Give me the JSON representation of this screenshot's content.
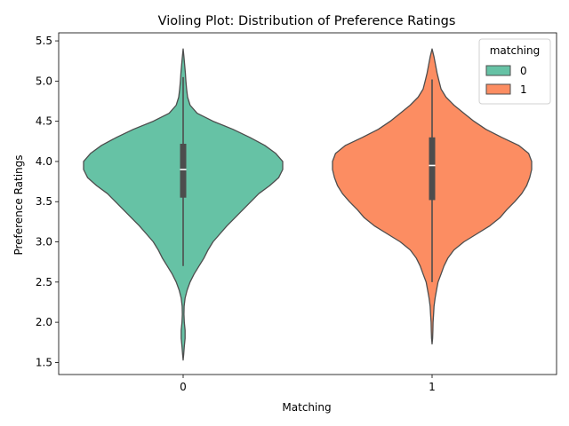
{
  "chart_data": {
    "type": "violin",
    "title": "Violing Plot: Distribution of Preference Ratings",
    "xlabel": "Matching",
    "ylabel": "Preference Ratings",
    "categories": [
      "0",
      "1"
    ],
    "ylim": [
      1.35,
      5.6
    ],
    "yticks": [
      "1.5",
      "2.0",
      "2.5",
      "3.0",
      "3.5",
      "4.0",
      "4.5",
      "5.0",
      "5.5"
    ],
    "grid": false,
    "legend": {
      "title": "matching",
      "position": "top-right",
      "entries": [
        {
          "label": "0",
          "color": "#66c2a5"
        },
        {
          "label": "1",
          "color": "#fc8d62"
        }
      ]
    },
    "series": [
      {
        "category": "0",
        "color": "#66c2a5",
        "density_y": [
          1.53,
          1.6,
          1.7,
          1.8,
          1.9,
          2.0,
          2.1,
          2.2,
          2.3,
          2.4,
          2.5,
          2.6,
          2.7,
          2.8,
          2.9,
          3.0,
          3.1,
          3.2,
          3.3,
          3.4,
          3.5,
          3.6,
          3.7,
          3.8,
          3.9,
          4.0,
          4.1,
          4.2,
          4.3,
          4.4,
          4.5,
          4.6,
          4.7,
          4.8,
          4.9,
          5.0,
          5.1,
          5.2,
          5.3,
          5.4
        ],
        "density_w": [
          0.0,
          0.005,
          0.012,
          0.02,
          0.02,
          0.012,
          0.008,
          0.01,
          0.02,
          0.04,
          0.07,
          0.11,
          0.16,
          0.21,
          0.25,
          0.3,
          0.37,
          0.44,
          0.52,
          0.6,
          0.68,
          0.76,
          0.87,
          0.96,
          1.0,
          1.0,
          0.93,
          0.82,
          0.67,
          0.5,
          0.3,
          0.14,
          0.07,
          0.045,
          0.035,
          0.028,
          0.022,
          0.015,
          0.008,
          0.0
        ],
        "whisker": [
          2.7,
          5.05
        ],
        "q1": 3.55,
        "median": 3.9,
        "q3": 4.22
      },
      {
        "category": "1",
        "color": "#fc8d62",
        "density_y": [
          1.73,
          1.8,
          1.9,
          2.0,
          2.1,
          2.2,
          2.3,
          2.4,
          2.5,
          2.6,
          2.7,
          2.8,
          2.9,
          3.0,
          3.1,
          3.2,
          3.3,
          3.4,
          3.5,
          3.6,
          3.7,
          3.8,
          3.9,
          4.0,
          4.1,
          4.2,
          4.3,
          4.4,
          4.5,
          4.6,
          4.7,
          4.8,
          4.9,
          5.0,
          5.1,
          5.2,
          5.3,
          5.4
        ],
        "density_w": [
          0.0,
          0.005,
          0.008,
          0.01,
          0.015,
          0.02,
          0.03,
          0.045,
          0.06,
          0.09,
          0.12,
          0.16,
          0.22,
          0.32,
          0.45,
          0.58,
          0.68,
          0.75,
          0.83,
          0.9,
          0.95,
          0.98,
          1.0,
          1.0,
          0.97,
          0.87,
          0.7,
          0.54,
          0.42,
          0.32,
          0.22,
          0.14,
          0.09,
          0.07,
          0.05,
          0.035,
          0.02,
          0.0
        ],
        "whisker": [
          2.5,
          5.02
        ],
        "q1": 3.52,
        "median": 3.95,
        "q3": 4.3
      }
    ]
  }
}
